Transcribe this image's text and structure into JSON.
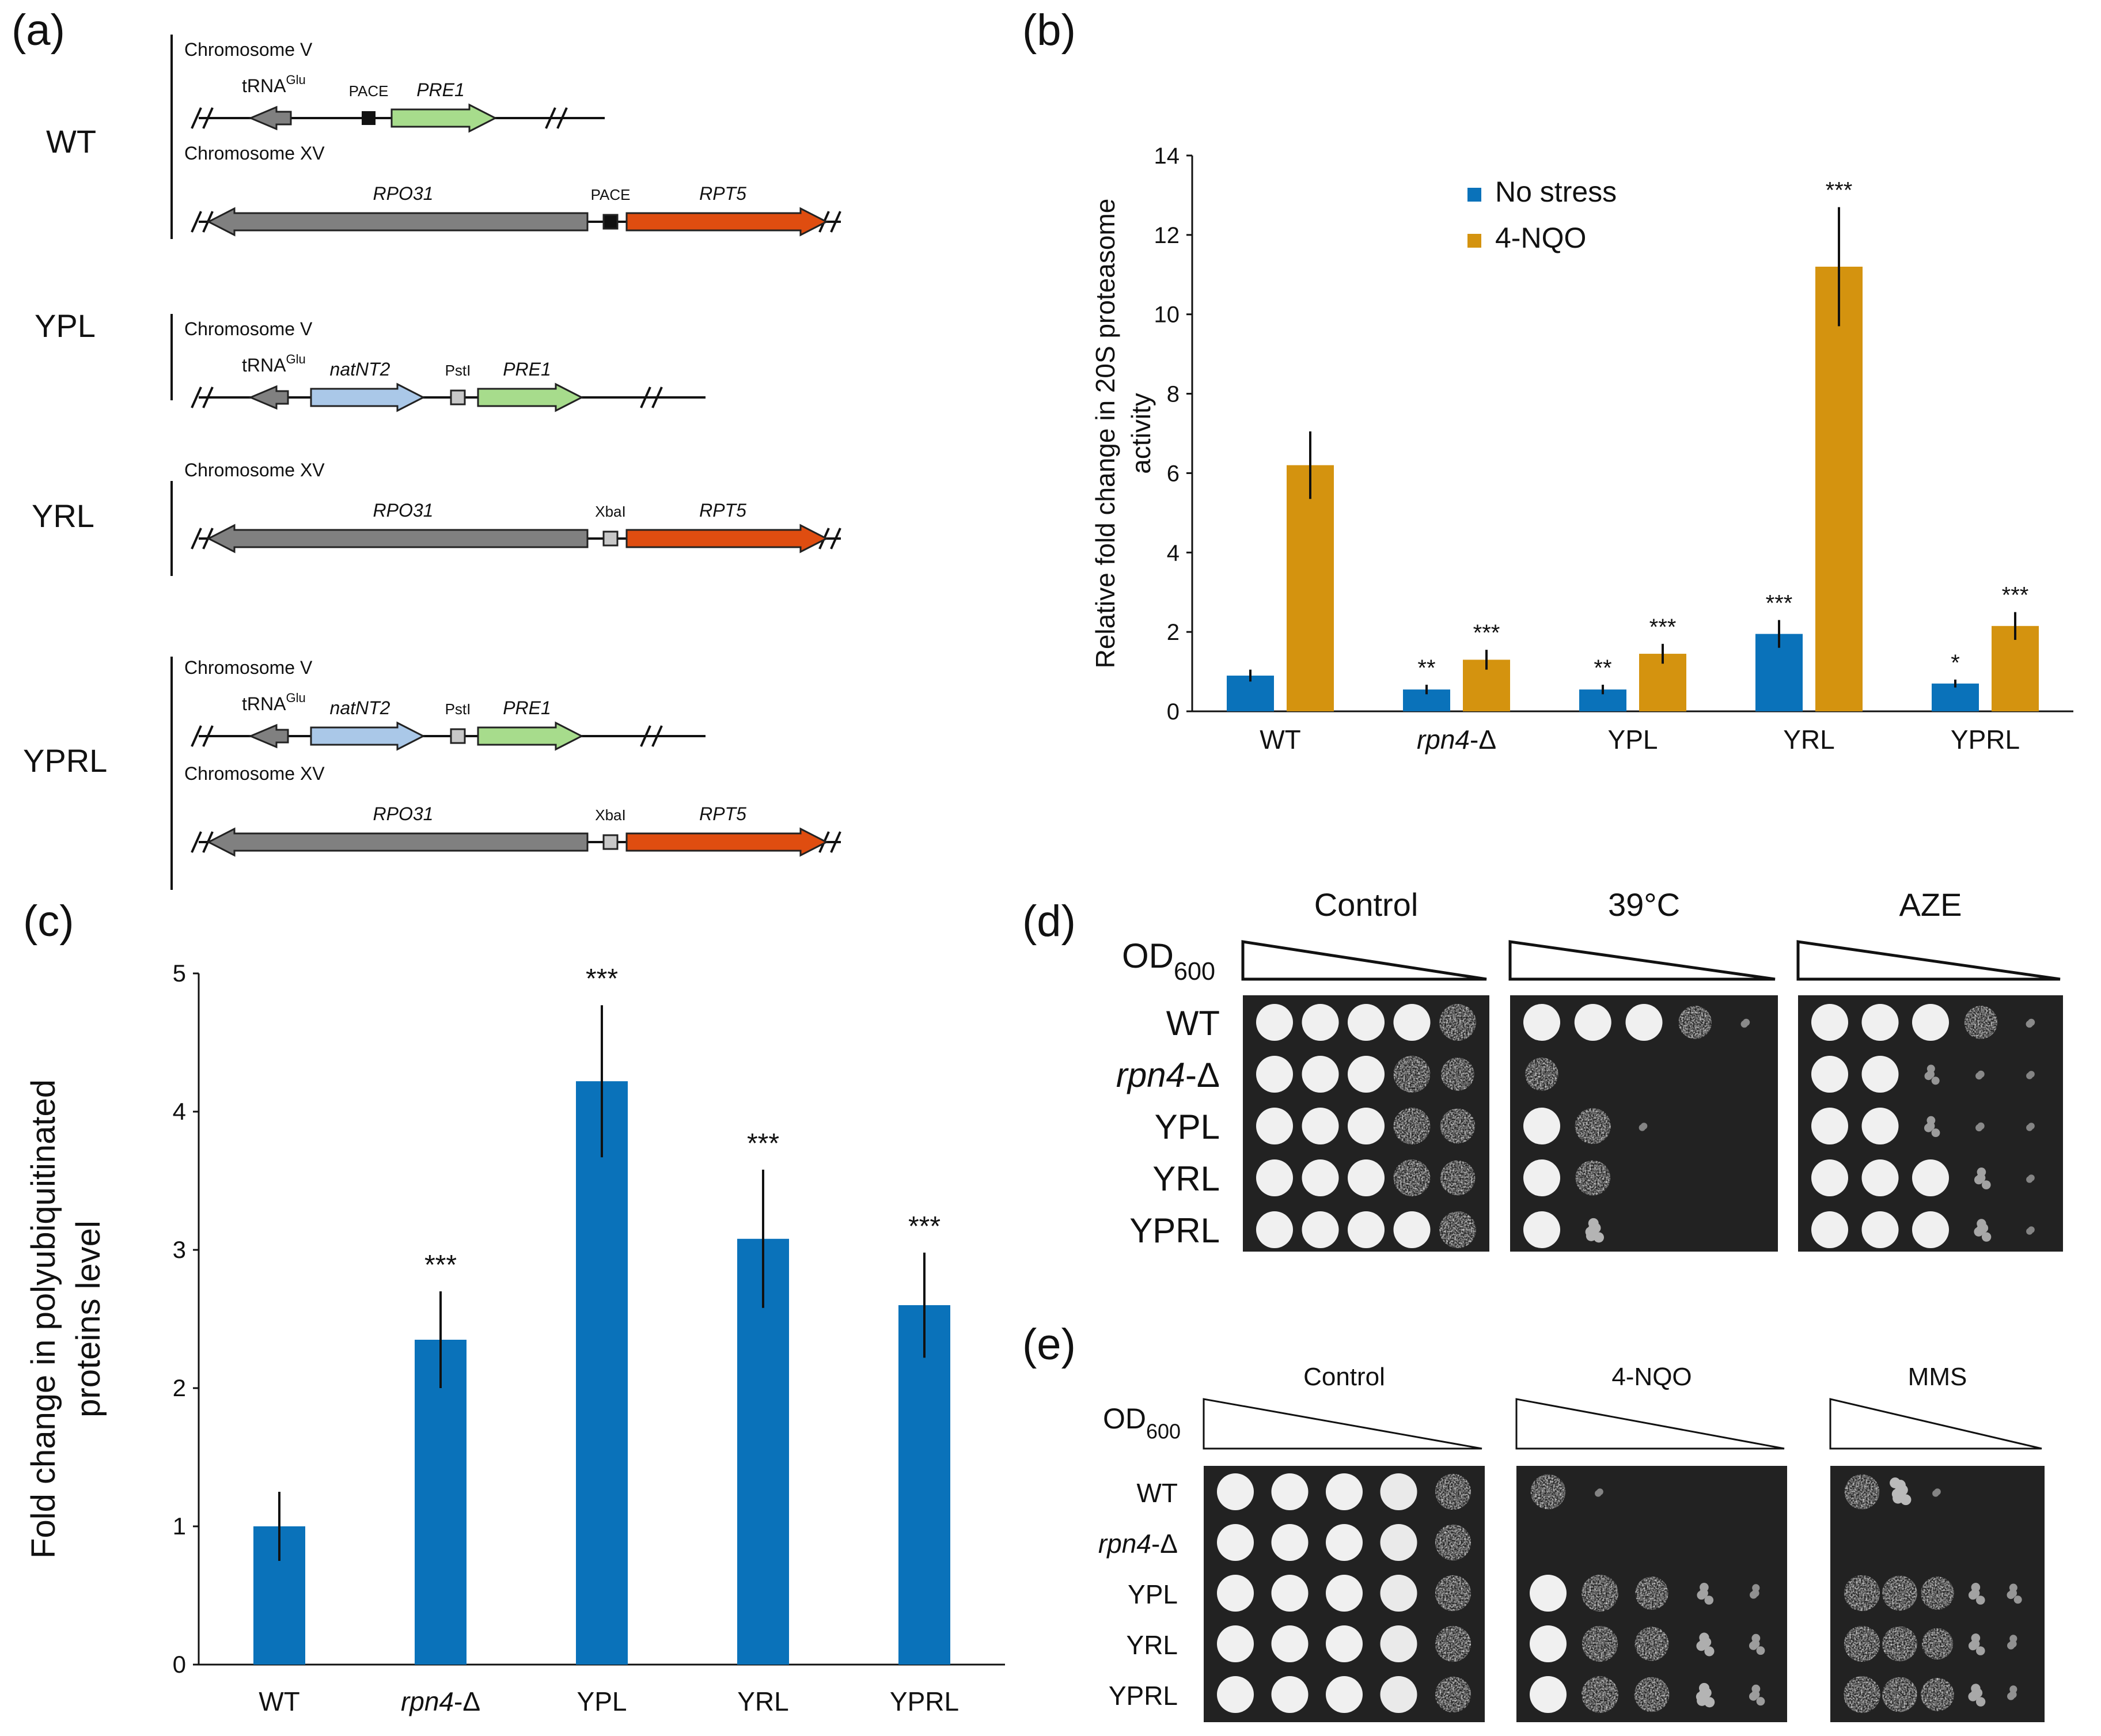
{
  "colors": {
    "blue": "#0a72ba",
    "gold": "#d4930f",
    "gray": "#808080",
    "green": "#a7dc8c",
    "lightblue": "#aac8e8",
    "orange": "#df4d10"
  },
  "panel_a": {
    "label": "(a)",
    "groups": [
      {
        "name": "WT",
        "chroms": [
          {
            "title": "Chromosome V",
            "features": [
              {
                "name": "tRNA",
                "sup": "Glu",
                "color_key": "gray",
                "direction": "left"
              },
              {
                "name": "PACE",
                "kind": "black-box"
              },
              {
                "name": "PRE1",
                "color_key": "green",
                "direction": "right"
              }
            ]
          },
          {
            "title": "Chromosome XV",
            "features": [
              {
                "name": "RPO31",
                "color_key": "gray",
                "direction": "left"
              },
              {
                "name": "PACE",
                "kind": "black-box"
              },
              {
                "name": "RPT5",
                "color_key": "orange",
                "direction": "right"
              }
            ]
          }
        ]
      },
      {
        "name": "YPL",
        "chroms": [
          {
            "title": "Chromosome V",
            "features": [
              {
                "name": "tRNA",
                "sup": "Glu",
                "color_key": "gray",
                "direction": "left"
              },
              {
                "name": "natNT2",
                "color_key": "lightblue",
                "direction": "right"
              },
              {
                "name": "PstI",
                "kind": "gray-box"
              },
              {
                "name": "PRE1",
                "color_key": "green",
                "direction": "right"
              }
            ]
          }
        ]
      },
      {
        "name": "YRL",
        "chroms": [
          {
            "title": "Chromosome XV",
            "features": [
              {
                "name": "RPO31",
                "color_key": "gray",
                "direction": "left"
              },
              {
                "name": "XbaI",
                "kind": "gray-box"
              },
              {
                "name": "RPT5",
                "color_key": "orange",
                "direction": "right"
              }
            ]
          }
        ]
      },
      {
        "name": "YPRL",
        "chroms": [
          {
            "title": "Chromosome V",
            "features": [
              {
                "name": "tRNA",
                "sup": "Glu",
                "color_key": "gray",
                "direction": "left"
              },
              {
                "name": "natNT2",
                "color_key": "lightblue",
                "direction": "right"
              },
              {
                "name": "PstI",
                "kind": "gray-box"
              },
              {
                "name": "PRE1",
                "color_key": "green",
                "direction": "right"
              }
            ]
          },
          {
            "title": "Chromosome XV",
            "features": [
              {
                "name": "RPO31",
                "color_key": "gray",
                "direction": "left"
              },
              {
                "name": "XbaI",
                "kind": "gray-box"
              },
              {
                "name": "RPT5",
                "color_key": "orange",
                "direction": "right"
              }
            ]
          }
        ]
      }
    ]
  },
  "panel_b": {
    "label": "(b)",
    "chart_data": {
      "type": "bar",
      "categories": [
        "WT",
        "rpn4-Δ",
        "YPL",
        "YRL",
        "YPRL"
      ],
      "categories_italic_part": [
        "",
        "rpn4",
        "",
        "",
        ""
      ],
      "ylabel": [
        "Relative fold change in 20S proteasome",
        "activity"
      ],
      "ylim": [
        0,
        14
      ],
      "yticks": [
        0,
        2,
        4,
        6,
        8,
        10,
        12,
        14
      ],
      "legend": [
        "No stress",
        "4-NQO"
      ],
      "legend_position": "top",
      "series": [
        {
          "name": "No stress",
          "values": [
            0.9,
            0.55,
            0.55,
            1.95,
            0.7
          ],
          "errors": [
            0.15,
            0.12,
            0.12,
            0.35,
            0.1
          ],
          "significance": [
            "",
            "**",
            "**",
            "***",
            "*"
          ]
        },
        {
          "name": "4-NQO",
          "values": [
            6.2,
            1.3,
            1.45,
            11.2,
            2.15
          ],
          "errors": [
            0.85,
            0.25,
            0.25,
            1.5,
            0.35
          ],
          "significance": [
            "",
            "***",
            "***",
            "***",
            "***"
          ]
        }
      ]
    }
  },
  "panel_c": {
    "label": "(c)",
    "chart_data": {
      "type": "bar",
      "categories": [
        "WT",
        "rpn4-Δ",
        "YPL",
        "YRL",
        "YPRL"
      ],
      "categories_italic_part": [
        "",
        "rpn4",
        "",
        "",
        ""
      ],
      "ylabel": [
        "Fold change in polyubiquitinated",
        "proteins level"
      ],
      "ylim": [
        0,
        5
      ],
      "yticks": [
        0,
        1,
        2,
        3,
        4,
        5
      ],
      "series": [
        {
          "name": "polyubiquitinated proteins",
          "values": [
            1.0,
            2.35,
            4.22,
            3.08,
            2.6
          ],
          "errors": [
            0.25,
            0.35,
            0.55,
            0.5,
            0.38
          ],
          "significance": [
            "",
            "***",
            "***",
            "***",
            "***"
          ]
        }
      ]
    }
  },
  "panel_d": {
    "label": "(d)",
    "od_label": "OD",
    "od_sub": "600",
    "strains": [
      "WT",
      "rpn4-Δ",
      "YPL",
      "YRL",
      "YPRL"
    ],
    "strains_italic_part": [
      "",
      "rpn4",
      "",
      "",
      ""
    ],
    "plates": [
      {
        "title": "Control",
        "growth": [
          [
            1,
            1,
            1,
            1,
            0.9
          ],
          [
            1,
            1,
            1,
            0.9,
            0.7
          ],
          [
            1,
            1,
            1,
            0.9,
            0.8
          ],
          [
            1,
            1,
            1,
            0.9,
            0.8
          ],
          [
            1,
            1,
            1,
            1,
            0.9
          ]
        ]
      },
      {
        "title": "39°C",
        "growth": [
          [
            1,
            1,
            1,
            0.7,
            0.15
          ],
          [
            0.7,
            0,
            0,
            0,
            0
          ],
          [
            1,
            0.85,
            0.1,
            0,
            0
          ],
          [
            1,
            0.8,
            0,
            0,
            0
          ],
          [
            1,
            0.5,
            0,
            0,
            0
          ]
        ]
      },
      {
        "title": "AZE",
        "growth": [
          [
            1,
            1,
            1,
            0.7,
            0.15
          ],
          [
            1,
            1,
            0.25,
            0.15,
            0.1
          ],
          [
            1,
            1,
            0.3,
            0.15,
            0.1
          ],
          [
            1,
            1,
            1,
            0.35,
            0.1
          ],
          [
            1,
            1,
            1,
            0.4,
            0.1
          ]
        ]
      }
    ]
  },
  "panel_e": {
    "label": "(e)",
    "od_label": "OD",
    "od_sub": "600",
    "strains": [
      "WT",
      "rpn4-Δ",
      "YPL",
      "YRL",
      "YPRL"
    ],
    "strains_italic_part": [
      "",
      "rpn4",
      "",
      "",
      ""
    ],
    "plates": [
      {
        "title": "Control",
        "growth": [
          [
            1,
            1,
            1,
            0.95,
            0.85
          ],
          [
            1,
            1,
            1,
            0.95,
            0.85
          ],
          [
            1,
            1,
            1,
            0.95,
            0.85
          ],
          [
            1,
            1,
            1,
            0.95,
            0.85
          ],
          [
            1,
            1,
            1,
            0.95,
            0.85
          ]
        ]
      },
      {
        "title": "4-NQO",
        "growth": [
          [
            0.8,
            0.1,
            0,
            0,
            0
          ],
          [
            0,
            0,
            0,
            0,
            0
          ],
          [
            1,
            0.9,
            0.7,
            0.35,
            0.2
          ],
          [
            1,
            0.85,
            0.75,
            0.45,
            0.3
          ],
          [
            1,
            0.9,
            0.8,
            0.5,
            0.3
          ]
        ]
      },
      {
        "title": "MMS",
        "growth": [
          [
            0.8,
            0.55,
            0.1,
            0,
            0
          ],
          [
            0,
            0,
            0,
            0,
            0
          ],
          [
            0.85,
            0.8,
            0.7,
            0.35,
            0.25
          ],
          [
            0.85,
            0.8,
            0.6,
            0.35,
            0.2
          ],
          [
            0.9,
            0.8,
            0.7,
            0.4,
            0.2
          ]
        ]
      }
    ]
  }
}
